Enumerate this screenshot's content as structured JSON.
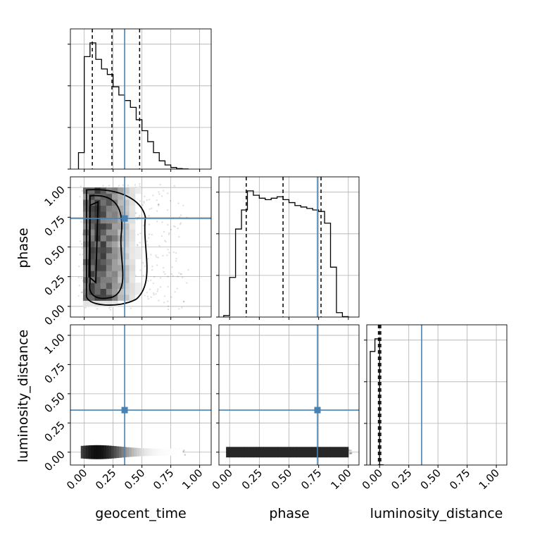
{
  "chart_data": {
    "type": "corner",
    "parameters": [
      "geocent_time",
      "phase",
      "luminosity_distance"
    ],
    "axis_labels": {
      "x": [
        "geocent_time",
        "phase",
        "luminosity_distance"
      ],
      "y": [
        "phase",
        "luminosity_distance"
      ]
    },
    "ticks": {
      "values": [
        0.0,
        0.25,
        0.5,
        0.75,
        1.0
      ],
      "labels": [
        "0.00",
        "0.25",
        "0.50",
        "0.75",
        "1.00"
      ]
    },
    "ranges": {
      "geocent_time": [
        -0.12,
        1.1
      ],
      "phase": [
        -0.09,
        1.09
      ],
      "luminosity_distance": [
        -0.11,
        1.09
      ]
    },
    "truths": {
      "geocent_time": 0.35,
      "phase": 0.74,
      "luminosity_distance": 0.36
    },
    "quantiles": {
      "geocent_time": [
        0.07,
        0.24,
        0.48
      ],
      "phase": [
        0.14,
        0.45,
        0.77
      ],
      "luminosity_distance": [
        -0.01,
        0.0,
        0.01
      ]
    },
    "histograms": {
      "geocent_time": {
        "edges": [
          -0.05,
          0.0,
          0.05,
          0.1,
          0.15,
          0.2,
          0.25,
          0.3,
          0.35,
          0.4,
          0.45,
          0.5,
          0.55,
          0.6,
          0.65,
          0.7,
          0.75,
          0.8,
          0.85,
          0.9
        ],
        "counts": [
          0.12,
          0.82,
          0.92,
          0.8,
          0.73,
          0.69,
          0.6,
          0.54,
          0.5,
          0.45,
          0.36,
          0.28,
          0.2,
          0.12,
          0.06,
          0.03,
          0.012,
          0.004,
          0.001
        ]
      },
      "phase": {
        "edges": [
          -0.05,
          0.0,
          0.05,
          0.1,
          0.15,
          0.2,
          0.25,
          0.3,
          0.35,
          0.4,
          0.45,
          0.5,
          0.55,
          0.6,
          0.65,
          0.7,
          0.75,
          0.8,
          0.85,
          0.9,
          0.95,
          1.0
        ],
        "counts": [
          0.01,
          0.27,
          0.6,
          0.73,
          0.86,
          0.83,
          0.81,
          0.8,
          0.81,
          0.82,
          0.8,
          0.78,
          0.76,
          0.75,
          0.74,
          0.73,
          0.72,
          0.64,
          0.34,
          0.03,
          0.003
        ]
      },
      "luminosity_distance": {
        "edges": [
          -0.08,
          -0.04,
          0.0,
          0.03
        ],
        "counts": [
          0.9,
          1.0,
          0.001
        ]
      }
    },
    "truth_color": "#4682b4",
    "grid": true
  }
}
